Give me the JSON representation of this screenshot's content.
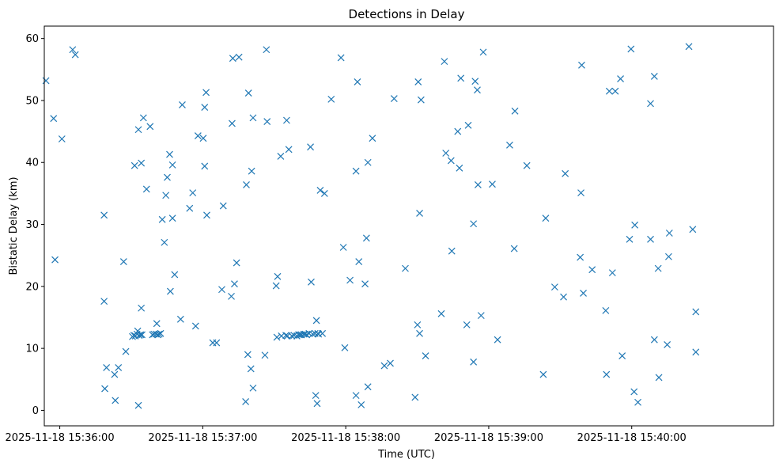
{
  "chart_data": {
    "type": "scatter",
    "title": "Detections in Delay",
    "xlabel": "Time (UTC)",
    "ylabel": "Bistatic Delay (km)",
    "marker": "x",
    "color": "#1f77b4",
    "grid": false,
    "legend": "none",
    "x_unit": "seconds after 2025-11-18 15:36:00 UTC",
    "xlim": [
      -6.5,
      299.5
    ],
    "ylim": [
      -2.5,
      62
    ],
    "x_ticks": [
      0,
      60,
      120,
      180,
      240
    ],
    "x_tick_labels": [
      "2025-11-18 15:36:00",
      "2025-11-18 15:37:00",
      "2025-11-18 15:38:00",
      "2025-11-18 15:39:00",
      "2025-11-18 15:40:00"
    ],
    "y_ticks": [
      0,
      10,
      20,
      30,
      40,
      50,
      60
    ],
    "y_tick_labels": [
      "0",
      "10",
      "20",
      "30",
      "40",
      "50",
      "60"
    ],
    "points": [
      [
        -5.8,
        53.2
      ],
      [
        -2.6,
        47.1
      ],
      [
        -2.0,
        24.3
      ],
      [
        0.9,
        43.8
      ],
      [
        5.4,
        58.2
      ],
      [
        6.5,
        57.4
      ],
      [
        18.6,
        31.5
      ],
      [
        18.6,
        17.6
      ],
      [
        18.9,
        3.5
      ],
      [
        19.6,
        6.9
      ],
      [
        23.0,
        5.8
      ],
      [
        23.3,
        1.6
      ],
      [
        24.6,
        6.9
      ],
      [
        26.8,
        24.0
      ],
      [
        27.7,
        9.5
      ],
      [
        30.5,
        11.9
      ],
      [
        31.1,
        12.1
      ],
      [
        31.4,
        39.5
      ],
      [
        31.7,
        12.0
      ],
      [
        32.4,
        12.3
      ],
      [
        32.7,
        12.8
      ],
      [
        33.0,
        45.3
      ],
      [
        33.0,
        0.8
      ],
      [
        33.3,
        12.1
      ],
      [
        33.9,
        12.2
      ],
      [
        34.2,
        39.9
      ],
      [
        34.2,
        16.5
      ],
      [
        34.5,
        12.2
      ],
      [
        35.1,
        47.2
      ],
      [
        36.4,
        35.7
      ],
      [
        37.9,
        45.8
      ],
      [
        38.9,
        12.2
      ],
      [
        39.5,
        12.3
      ],
      [
        40.4,
        12.3
      ],
      [
        40.7,
        14.0
      ],
      [
        41.1,
        12.2
      ],
      [
        41.7,
        12.3
      ],
      [
        42.3,
        12.4
      ],
      [
        43.0,
        30.8
      ],
      [
        43.9,
        27.1
      ],
      [
        44.5,
        34.7
      ],
      [
        45.1,
        37.6
      ],
      [
        46.1,
        41.3
      ],
      [
        46.4,
        19.2
      ],
      [
        47.3,
        39.6
      ],
      [
        47.3,
        31.0
      ],
      [
        48.2,
        21.9
      ],
      [
        50.7,
        14.7
      ],
      [
        51.4,
        49.3
      ],
      [
        54.5,
        32.6
      ],
      [
        55.8,
        35.1
      ],
      [
        57.0,
        13.6
      ],
      [
        58.0,
        44.3
      ],
      [
        60.2,
        43.9
      ],
      [
        60.8,
        48.9
      ],
      [
        60.8,
        39.4
      ],
      [
        61.4,
        51.3
      ],
      [
        61.7,
        31.5
      ],
      [
        64.2,
        10.9
      ],
      [
        65.8,
        10.9
      ],
      [
        68.0,
        19.5
      ],
      [
        68.6,
        33.0
      ],
      [
        72.0,
        18.4
      ],
      [
        72.3,
        46.3
      ],
      [
        72.6,
        56.8
      ],
      [
        73.3,
        20.4
      ],
      [
        74.2,
        23.8
      ],
      [
        75.2,
        57.0
      ],
      [
        78.0,
        1.4
      ],
      [
        78.3,
        36.4
      ],
      [
        78.9,
        9.0
      ],
      [
        79.2,
        51.2
      ],
      [
        80.2,
        6.7
      ],
      [
        80.5,
        38.6
      ],
      [
        81.1,
        47.2
      ],
      [
        81.1,
        3.6
      ],
      [
        86.1,
        8.9
      ],
      [
        86.7,
        58.2
      ],
      [
        87.0,
        46.6
      ],
      [
        90.8,
        20.1
      ],
      [
        91.1,
        11.8
      ],
      [
        91.4,
        21.6
      ],
      [
        92.7,
        41.0
      ],
      [
        93.0,
        12.0
      ],
      [
        94.9,
        12.1
      ],
      [
        95.2,
        46.8
      ],
      [
        95.5,
        12.0
      ],
      [
        96.1,
        42.1
      ],
      [
        97.4,
        12.0
      ],
      [
        98.3,
        12.1
      ],
      [
        99.5,
        12.0
      ],
      [
        100.2,
        12.2
      ],
      [
        100.8,
        12.2
      ],
      [
        101.4,
        12.2
      ],
      [
        102.4,
        12.3
      ],
      [
        103.0,
        12.3
      ],
      [
        103.6,
        12.2
      ],
      [
        104.6,
        12.4
      ],
      [
        105.2,
        42.5
      ],
      [
        105.5,
        20.7
      ],
      [
        106.1,
        12.3
      ],
      [
        107.1,
        12.4
      ],
      [
        107.4,
        2.4
      ],
      [
        107.7,
        14.5
      ],
      [
        108.0,
        1.1
      ],
      [
        108.3,
        12.4
      ],
      [
        108.6,
        12.3
      ],
      [
        109.3,
        35.5
      ],
      [
        110.2,
        12.4
      ],
      [
        111.1,
        35.0
      ],
      [
        113.9,
        50.2
      ],
      [
        118.0,
        56.9
      ],
      [
        119.0,
        26.3
      ],
      [
        119.6,
        10.1
      ],
      [
        121.8,
        21.0
      ],
      [
        124.3,
        2.4
      ],
      [
        124.3,
        38.6
      ],
      [
        124.9,
        53.0
      ],
      [
        125.5,
        24.0
      ],
      [
        126.5,
        0.9
      ],
      [
        128.1,
        20.4
      ],
      [
        128.7,
        27.8
      ],
      [
        129.3,
        40.0
      ],
      [
        129.3,
        3.8
      ],
      [
        131.2,
        43.9
      ],
      [
        136.2,
        7.2
      ],
      [
        138.7,
        7.6
      ],
      [
        140.3,
        50.3
      ],
      [
        145.0,
        22.9
      ],
      [
        149.1,
        2.1
      ],
      [
        150.1,
        13.8
      ],
      [
        150.4,
        53.0
      ],
      [
        151.0,
        31.8
      ],
      [
        151.0,
        12.4
      ],
      [
        151.6,
        50.1
      ],
      [
        153.5,
        8.8
      ],
      [
        160.1,
        15.6
      ],
      [
        161.4,
        56.3
      ],
      [
        162.0,
        41.5
      ],
      [
        164.2,
        40.3
      ],
      [
        164.5,
        25.7
      ],
      [
        167.0,
        45.0
      ],
      [
        167.7,
        39.1
      ],
      [
        168.3,
        53.6
      ],
      [
        170.8,
        13.8
      ],
      [
        171.4,
        46.0
      ],
      [
        173.6,
        30.1
      ],
      [
        173.6,
        7.8
      ],
      [
        174.3,
        53.1
      ],
      [
        175.2,
        51.7
      ],
      [
        175.5,
        36.4
      ],
      [
        176.8,
        15.3
      ],
      [
        177.7,
        57.8
      ],
      [
        181.5,
        36.5
      ],
      [
        183.7,
        11.4
      ],
      [
        188.8,
        42.8
      ],
      [
        190.7,
        26.1
      ],
      [
        191.0,
        48.3
      ],
      [
        196.0,
        39.5
      ],
      [
        202.9,
        5.8
      ],
      [
        203.9,
        31.0
      ],
      [
        207.7,
        19.9
      ],
      [
        211.4,
        18.3
      ],
      [
        212.1,
        38.2
      ],
      [
        218.4,
        24.7
      ],
      [
        218.7,
        35.1
      ],
      [
        219.0,
        55.7
      ],
      [
        219.7,
        18.9
      ],
      [
        223.4,
        22.7
      ],
      [
        229.1,
        16.1
      ],
      [
        229.4,
        5.8
      ],
      [
        230.6,
        51.5
      ],
      [
        231.9,
        22.2
      ],
      [
        233.1,
        51.5
      ],
      [
        235.3,
        53.5
      ],
      [
        236.0,
        8.8
      ],
      [
        239.1,
        27.6
      ],
      [
        239.7,
        58.3
      ],
      [
        241.0,
        3.0
      ],
      [
        241.3,
        29.9
      ],
      [
        242.6,
        1.3
      ],
      [
        247.9,
        49.5
      ],
      [
        247.9,
        27.6
      ],
      [
        249.5,
        11.4
      ],
      [
        249.5,
        53.9
      ],
      [
        251.1,
        22.9
      ],
      [
        251.4,
        5.3
      ],
      [
        254.9,
        10.6
      ],
      [
        255.5,
        24.8
      ],
      [
        255.8,
        28.6
      ],
      [
        264.0,
        58.7
      ],
      [
        265.6,
        29.2
      ],
      [
        266.9,
        15.9
      ],
      [
        266.9,
        9.4
      ]
    ]
  }
}
